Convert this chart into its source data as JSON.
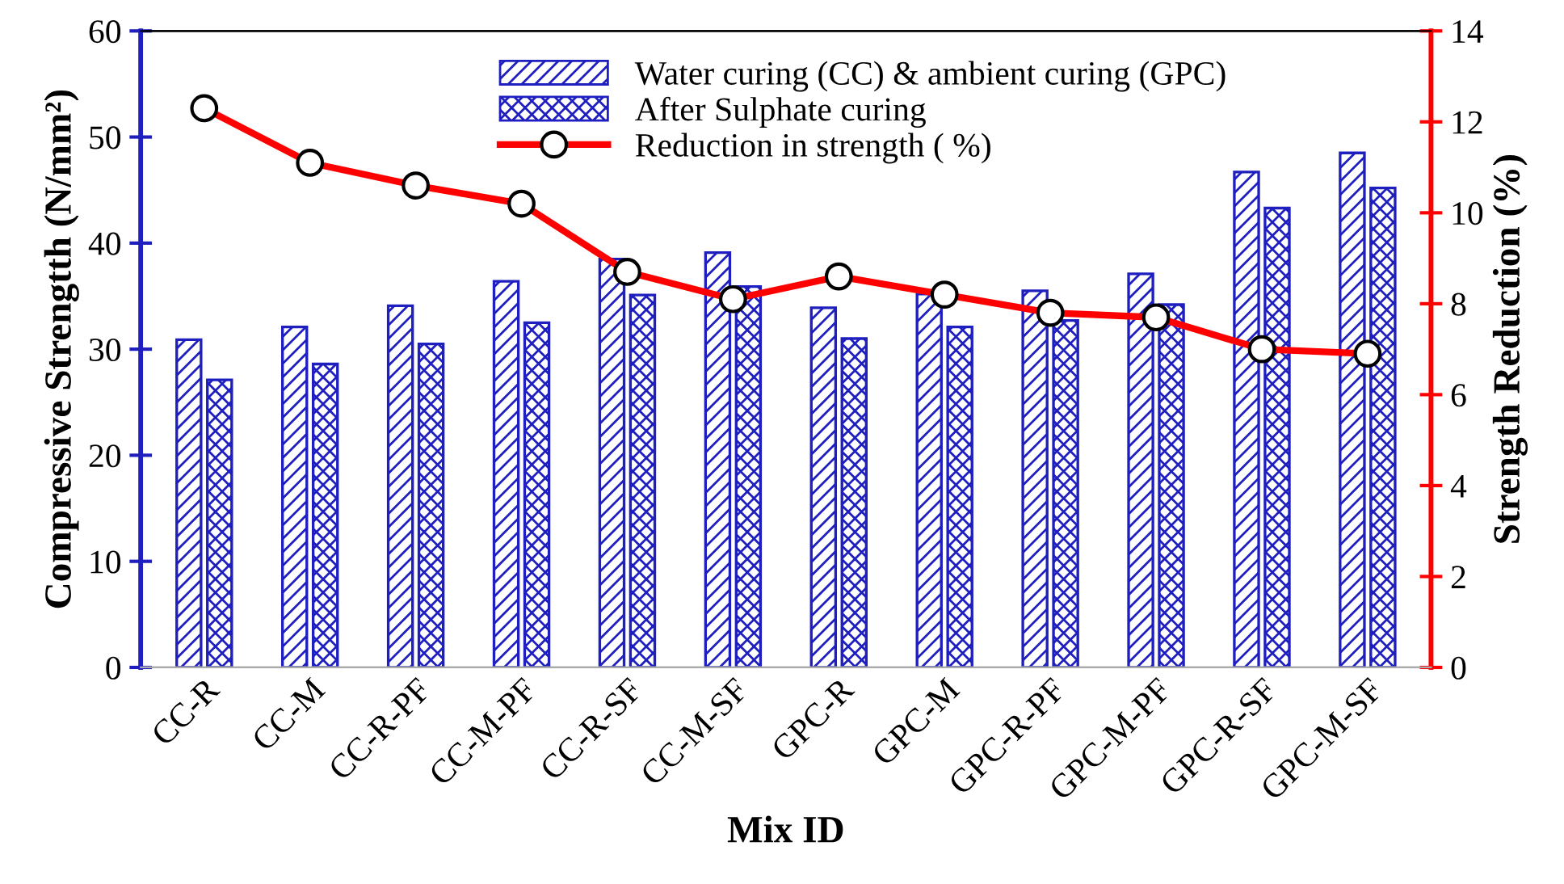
{
  "chart_data": {
    "type": "bar",
    "xlabel": "Mix ID",
    "ylabel": "Compressive Strengtth (N/mm²)",
    "y2label": "Strength Reduction (%)",
    "categories": [
      "CC-R",
      "CC-M",
      "CC-R-PF",
      "CC-M-PF",
      "CC-R-SF",
      "CC-M-SF",
      "GPC-R",
      "GPC-M",
      "GPC-R-PF",
      "GPC-M-PF",
      "GPC-R-SF",
      "GPC-M-SF"
    ],
    "series": [
      {
        "name": "Water curing (CC) & ambient curing (GPC)",
        "color": "#1f1fbf",
        "values": [
          30.9,
          32.1,
          34.1,
          36.4,
          38.5,
          39.1,
          33.9,
          35.2,
          35.5,
          37.1,
          46.7,
          48.5
        ]
      },
      {
        "name": "After Sulphate curing",
        "color": "#1f1fbf",
        "values": [
          27.1,
          28.6,
          30.5,
          32.5,
          35.1,
          35.9,
          31.0,
          32.1,
          32.7,
          34.2,
          43.3,
          45.2
        ]
      },
      {
        "name": "Reduction in strength ( %)",
        "type": "line",
        "axis": "y2",
        "color": "#ff0000",
        "marker": "circle",
        "values": [
          12.3,
          11.1,
          10.6,
          10.2,
          8.7,
          8.1,
          8.6,
          8.2,
          7.8,
          7.7,
          7.0,
          6.9
        ]
      }
    ],
    "ylim": [
      0,
      60
    ],
    "yticks": [
      0,
      10,
      20,
      30,
      40,
      50,
      60
    ],
    "y2lim": [
      0,
      14
    ],
    "y2ticks": [
      0,
      2,
      4,
      6,
      8,
      10,
      12,
      14
    ],
    "grid": false,
    "legend": "top"
  }
}
